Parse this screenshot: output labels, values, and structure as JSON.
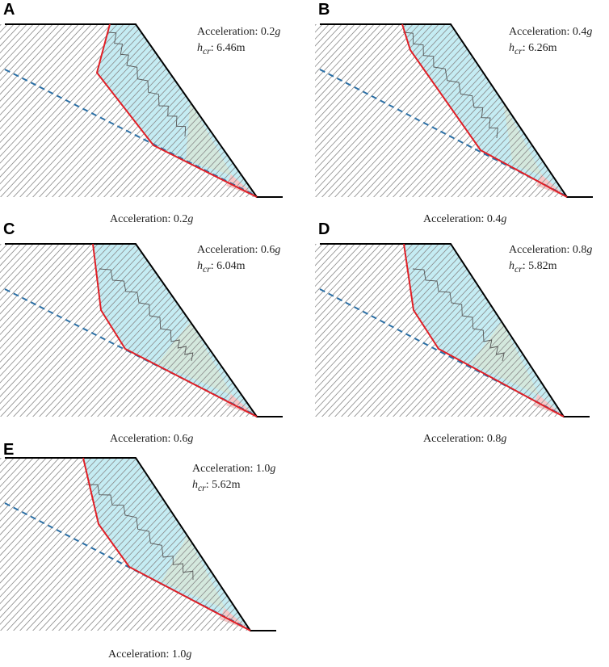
{
  "figure": {
    "colors": {
      "hatch": "#8a8a8a",
      "outline": "#000000",
      "slip_surface": "#e01f26",
      "water_table": "#2a6fa6",
      "sliding_fill": "#bfeaf2",
      "green_zone": "#d6e8d8",
      "pink_zone": "#f7c9c9",
      "inner_crack": "#555555"
    },
    "panels": [
      {
        "letter": "A",
        "accel_label": "Acceleration:",
        "accel_value": "0.2",
        "accel_unit": "g",
        "hcr_symbol": "h",
        "hcr_sub": "cr",
        "hcr_value": ": 6.46m",
        "caption_label": "Acceleration: ",
        "caption_value": "0.2",
        "caption_unit": "g"
      },
      {
        "letter": "B",
        "accel_label": "Acceleration:",
        "accel_value": "0.4",
        "accel_unit": "g",
        "hcr_symbol": "h",
        "hcr_sub": "cr",
        "hcr_value": ": 6.26m",
        "caption_label": "Acceleration: ",
        "caption_value": "0.4",
        "caption_unit": "g"
      },
      {
        "letter": "C",
        "accel_label": "Acceleration:",
        "accel_value": "0.6",
        "accel_unit": "g",
        "hcr_symbol": "h",
        "hcr_sub": "cr",
        "hcr_value": ": 6.04m",
        "caption_label": "Acceleration: ",
        "caption_value": "0.6",
        "caption_unit": "g"
      },
      {
        "letter": "D",
        "accel_label": "Acceleration:",
        "accel_value": "0.8",
        "accel_unit": "g",
        "hcr_symbol": "h",
        "hcr_sub": "cr",
        "hcr_value": ": 5.82m",
        "caption_label": "Acceleration: ",
        "caption_value": "0.8",
        "caption_unit": "g"
      },
      {
        "letter": "E",
        "accel_label": "Acceleration:",
        "accel_value": "1.0",
        "accel_unit": "g",
        "hcr_symbol": "h",
        "hcr_sub": "cr",
        "hcr_value": ": 5.62m",
        "caption_label": "Acceleration: ",
        "caption_value": "1.0",
        "caption_unit": "g"
      }
    ]
  }
}
